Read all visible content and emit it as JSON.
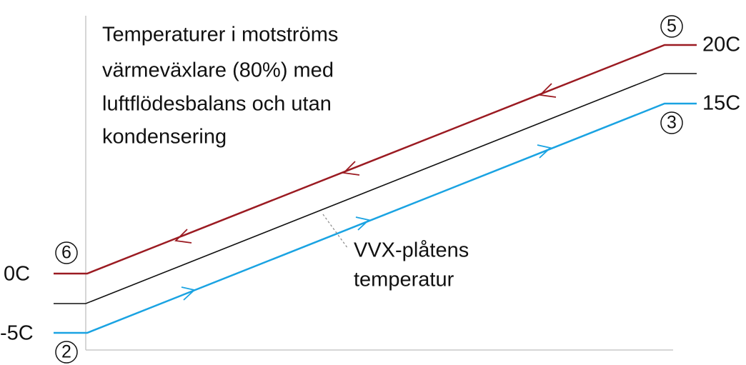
{
  "title_lines": [
    "Temperaturer i motströms",
    "värmeväxlare (80%) med",
    "luftflödesbalans och utan",
    "kondensering"
  ],
  "exhaust_line": {
    "start_label": "0C",
    "end_label": "20C",
    "start_point": "6",
    "end_point": "5"
  },
  "supply_line": {
    "start_label": "-5C",
    "end_label": "15C",
    "start_point": "2",
    "end_point": "3"
  },
  "plate_label": [
    "VVX-plåtens",
    "temperatur"
  ]
}
